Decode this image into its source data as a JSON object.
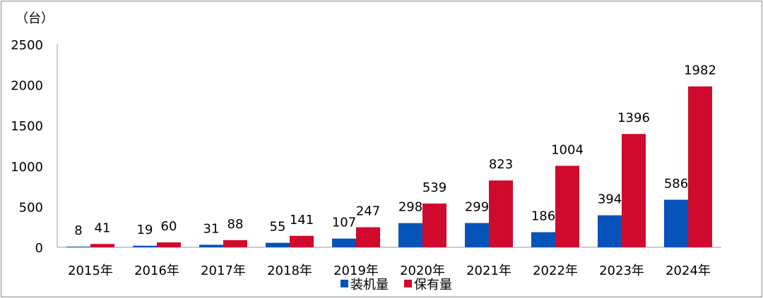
{
  "chart_data": {
    "type": "bar",
    "unit_label": "（台）",
    "categories": [
      "2015年",
      "2016年",
      "2017年",
      "2018年",
      "2019年",
      "2020年",
      "2021年",
      "2022年",
      "2023年",
      "2024年"
    ],
    "series": [
      {
        "name": "装机量",
        "color": "#0553b8",
        "values": [
          8,
          19,
          31,
          55,
          107,
          298,
          299,
          186,
          394,
          586
        ]
      },
      {
        "name": "保有量",
        "color": "#cf0a2c",
        "values": [
          41,
          60,
          88,
          141,
          247,
          539,
          823,
          1004,
          1396,
          1982
        ]
      }
    ],
    "yticks": [
      0,
      500,
      1000,
      1500,
      2000,
      2500
    ],
    "ylim": [
      0,
      2500
    ],
    "legend_position": "bottom",
    "grid": false
  }
}
